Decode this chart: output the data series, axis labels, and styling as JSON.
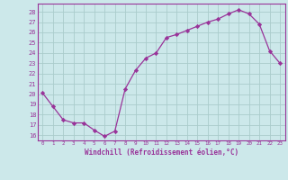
{
  "x": [
    0,
    1,
    2,
    3,
    4,
    5,
    6,
    7,
    8,
    9,
    10,
    11,
    12,
    13,
    14,
    15,
    16,
    17,
    18,
    19,
    20,
    21,
    22,
    23
  ],
  "y": [
    20.1,
    18.8,
    17.5,
    17.2,
    17.2,
    16.5,
    15.9,
    16.4,
    20.5,
    22.3,
    23.5,
    24.0,
    25.5,
    25.8,
    26.2,
    26.6,
    27.0,
    27.3,
    27.8,
    28.2,
    27.8,
    26.8,
    24.2,
    23.0
  ],
  "xlim": [
    -0.5,
    23.5
  ],
  "ylim": [
    15.5,
    28.8
  ],
  "yticks": [
    16,
    17,
    18,
    19,
    20,
    21,
    22,
    23,
    24,
    25,
    26,
    27,
    28
  ],
  "xticks": [
    0,
    1,
    2,
    3,
    4,
    5,
    6,
    7,
    8,
    9,
    10,
    11,
    12,
    13,
    14,
    15,
    16,
    17,
    18,
    19,
    20,
    21,
    22,
    23
  ],
  "xtick_labels": [
    "0",
    "1",
    "2",
    "3",
    "4",
    "5",
    "6",
    "7",
    "8",
    "9",
    "10",
    "11",
    "12",
    "13",
    "14",
    "15",
    "16",
    "17",
    "18",
    "19",
    "20",
    "21",
    "22",
    "23"
  ],
  "xlabel": "Windchill (Refroidissement éolien,°C)",
  "line_color": "#993399",
  "marker": "D",
  "marker_size": 2.2,
  "bg_color": "#cce8ea",
  "grid_color": "#aacccc",
  "tick_color": "#993399",
  "label_color": "#993399",
  "axis_color": "#993399"
}
